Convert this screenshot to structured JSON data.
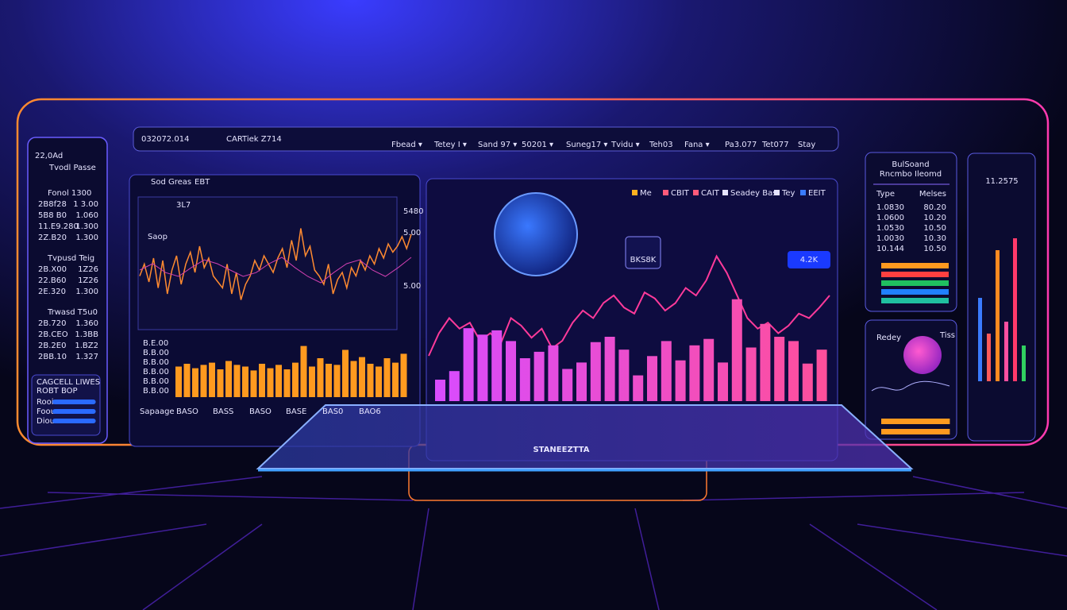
{
  "header": {
    "id": "032072.014",
    "title": "CARTiek Z714",
    "menu": [
      "Fbead ▾",
      "Tetey I ▾",
      "Sand 97 ▾",
      "50201 ▾",
      "Suneg17 ▾",
      "Tvidu ▾",
      "Teh03",
      "Fana ▾",
      "Pa3.077",
      "Tet077",
      "Stay"
    ]
  },
  "left_panel": {
    "title": "22,0Ad",
    "subtitle": "Tvodl Passe",
    "groups": [
      {
        "heading": "Fonol 1300",
        "rows": [
          [
            "2B8f28",
            "1 3.00"
          ],
          [
            "5B8 B0",
            "1.060"
          ],
          [
            "11.E9.280",
            "1.300"
          ],
          [
            "2Z.B20",
            "1.300"
          ]
        ]
      },
      {
        "heading": "Tvpusd Teig",
        "rows": [
          [
            "2B.X00",
            "1Z26"
          ],
          [
            "22.B60",
            "1Z26"
          ],
          [
            "2E.320",
            "1.300"
          ]
        ]
      },
      {
        "heading": "Trwasd T5u0",
        "rows": [
          [
            "2B.720",
            "1.360"
          ],
          [
            "2B.CEO",
            "1.3BB"
          ],
          [
            "2B.2E0",
            "1.BZ2"
          ],
          [
            "2BB.10",
            "1.327"
          ]
        ]
      }
    ],
    "footer": {
      "title": "CAGCELL LIWES",
      "subtitle": "ROBT BOP",
      "labels": [
        "Rooie",
        "Fooue",
        "Dioue"
      ],
      "meters": [
        78,
        78,
        78
      ]
    }
  },
  "price_chart": {
    "tabs": [
      "Sod Greas",
      "EBT"
    ],
    "stat": "3L7",
    "button": "Saop",
    "yticks": [
      "5480",
      "5.00",
      "5.00"
    ],
    "line": [
      45,
      55,
      40,
      60,
      35,
      58,
      30,
      50,
      62,
      38,
      55,
      65,
      48,
      70,
      52,
      60,
      45,
      40,
      35,
      55,
      30,
      48,
      25,
      38,
      45,
      58,
      50,
      62,
      55,
      48,
      60,
      68,
      52,
      75,
      58,
      85,
      62,
      70,
      50,
      45,
      38,
      55,
      30,
      42,
      48,
      35,
      52,
      45,
      58,
      50,
      62,
      55,
      68,
      60,
      72,
      65,
      70,
      78,
      68,
      80
    ],
    "line2": [
      50,
      55,
      48,
      45,
      52,
      58,
      55,
      50,
      45,
      48,
      55,
      60,
      52,
      45,
      40,
      48,
      55,
      58,
      50,
      45,
      52,
      60
    ],
    "bar_labels": [
      "B.E.00",
      "B.B.00",
      "B.B.00",
      "B.B.00",
      "B.B.00",
      "B.B.00"
    ],
    "bars": [
      55,
      60,
      52,
      58,
      62,
      50,
      65,
      58,
      55,
      48,
      60,
      52,
      58,
      50,
      62,
      92,
      55,
      70,
      60,
      58,
      85,
      65,
      72,
      60,
      55,
      70,
      62,
      78
    ],
    "x_labels": [
      "Sapaage",
      "BASO",
      "BASS",
      "BASO",
      "BASE",
      "BAS0",
      "BAO6"
    ]
  },
  "main_chart": {
    "legend": [
      "Me",
      "CBIT",
      "CAIT",
      "Seadey Bas",
      "Tey",
      "EEIT"
    ],
    "callouts": [
      "BKS8K",
      "4.2K"
    ],
    "bars": [
      20,
      28,
      68,
      62,
      66,
      56,
      40,
      46,
      52,
      30,
      36,
      55,
      60,
      48,
      24,
      42,
      56,
      38,
      52,
      58,
      36,
      95,
      50,
      72,
      60,
      56,
      35,
      48
    ],
    "line": [
      30,
      45,
      55,
      48,
      52,
      40,
      45,
      38,
      55,
      50,
      42,
      48,
      35,
      40,
      52,
      60,
      55,
      65,
      70,
      62,
      58,
      72,
      68,
      60,
      65,
      75,
      70,
      80,
      96,
      85,
      70,
      55,
      48,
      52,
      45,
      50,
      58,
      55,
      62,
      70
    ]
  },
  "right_panel": {
    "title": "BulSoand",
    "subtitle": "Rncmbo Ileomd",
    "headers": [
      "Type",
      "Melses"
    ],
    "rows": [
      [
        "1.0830",
        "80.20"
      ],
      [
        "1.0600",
        "10.20"
      ],
      [
        "1.0530",
        "10.50"
      ],
      [
        "1.0030",
        "10.30"
      ],
      [
        "10.144",
        "10.50"
      ]
    ],
    "meters": [
      {
        "value": 85,
        "color": "#ff9a1f"
      },
      {
        "value": 85,
        "color": "#ff4040"
      },
      {
        "value": 85,
        "color": "#20c060"
      },
      {
        "value": 85,
        "color": "#2080ff"
      },
      {
        "value": 85,
        "color": "#20c0a0"
      }
    ]
  },
  "gauge_panel": {
    "label": "Redey",
    "tag": "Tiss",
    "meters": [
      80,
      80
    ]
  },
  "far_right": {
    "value": "11.2575",
    "bars": [
      {
        "value": 35,
        "color": "#3a7bff"
      },
      {
        "value": 20,
        "color": "#ff5a5a"
      },
      {
        "value": 55,
        "color": "#ff8a20"
      },
      {
        "value": 25,
        "color": "#ff4fa0"
      },
      {
        "value": 60,
        "color": "#ff3a6a"
      },
      {
        "value": 15,
        "color": "#30d060"
      }
    ]
  },
  "tablet": {
    "label": "STANEEZTTA"
  }
}
